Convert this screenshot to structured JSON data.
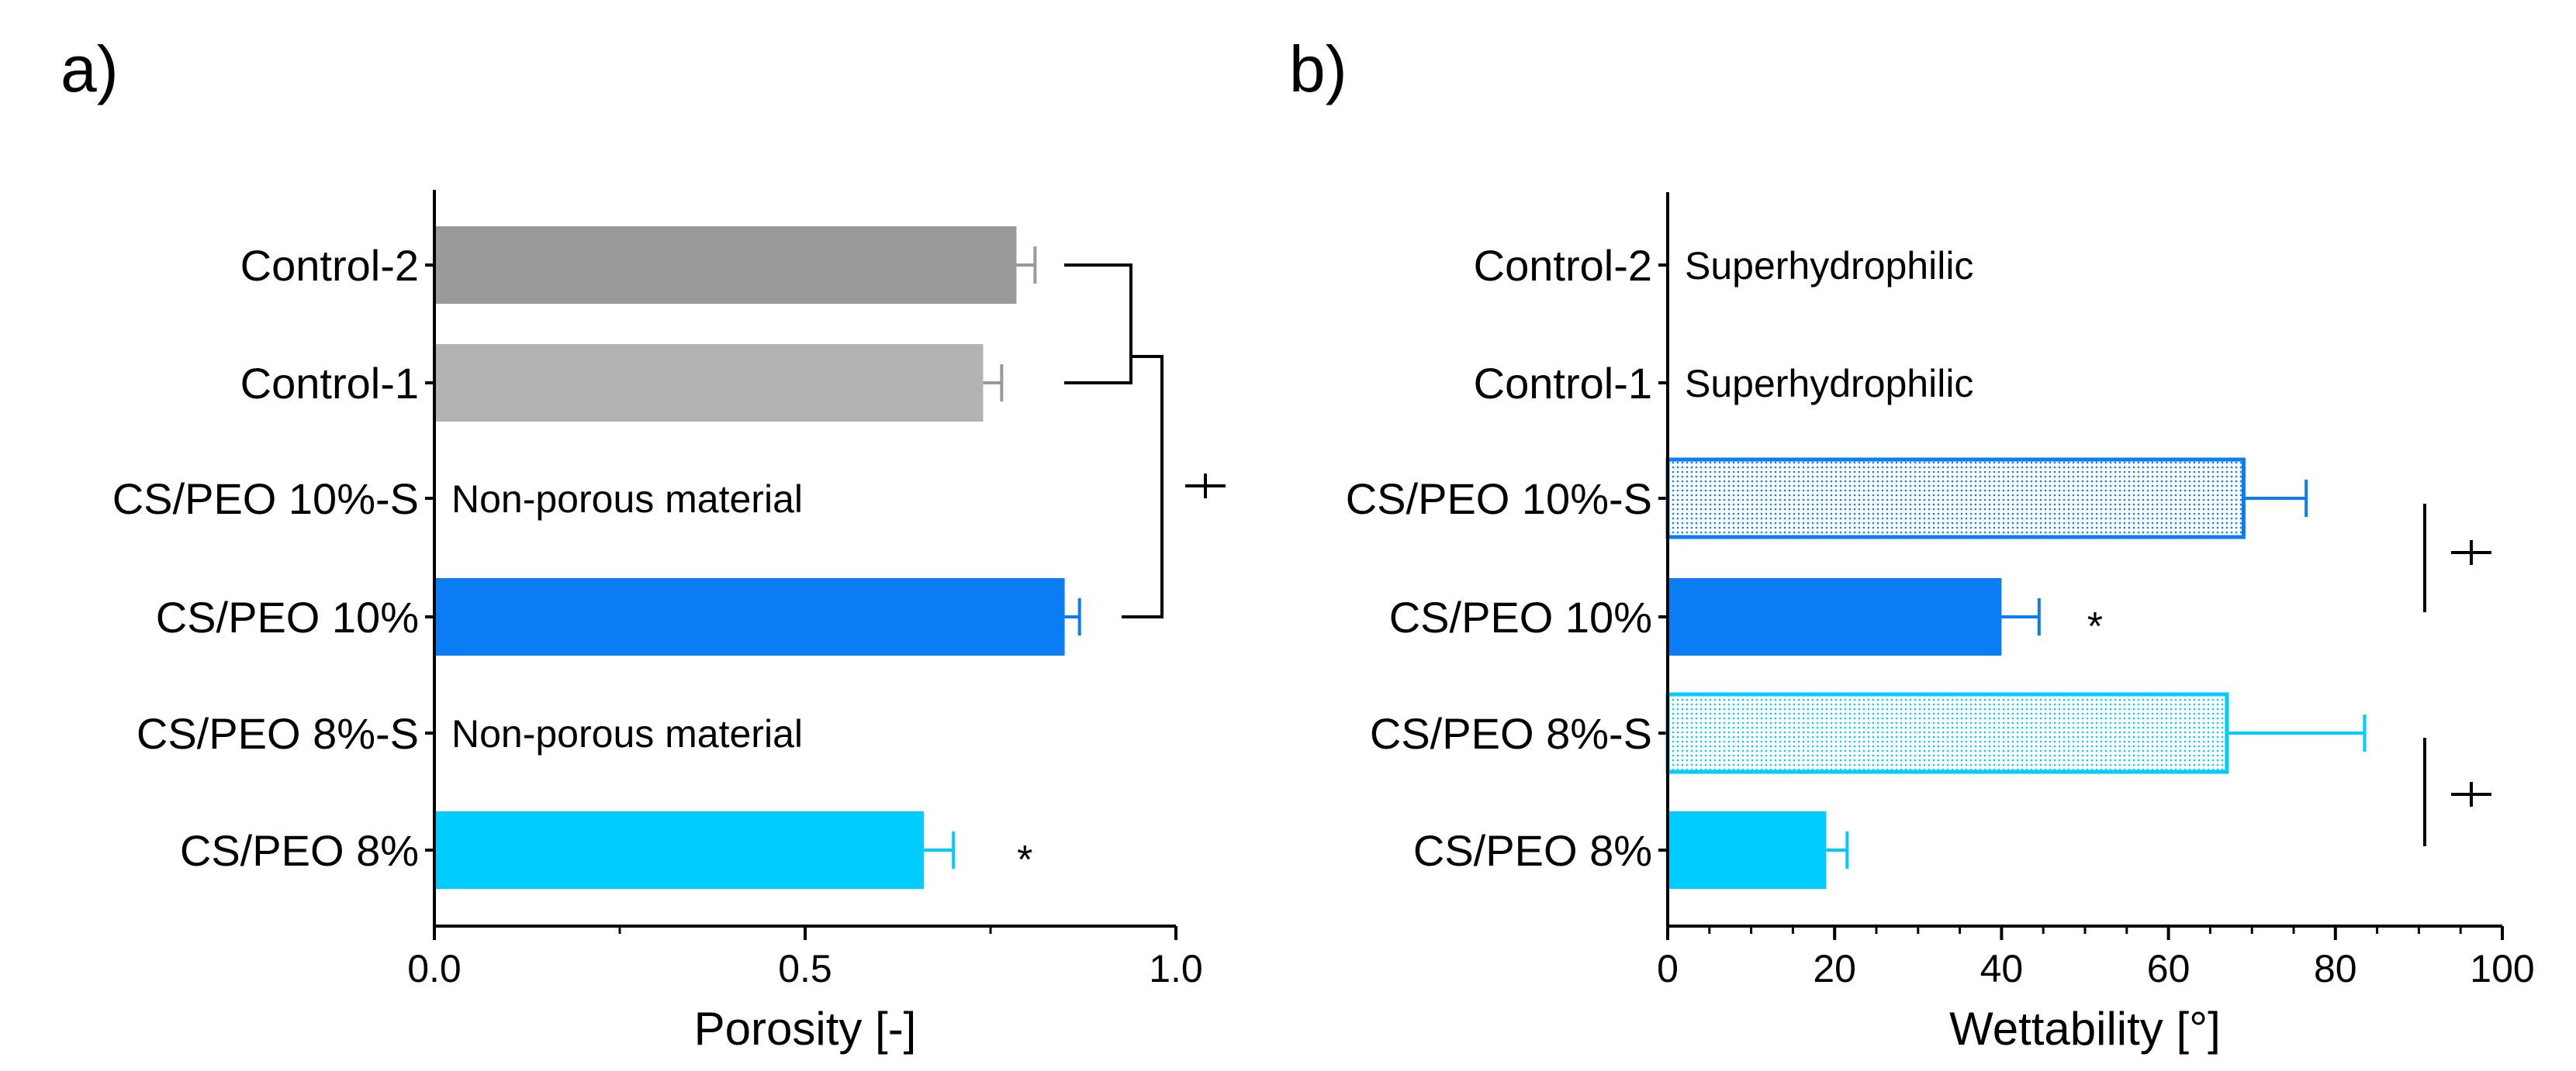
{
  "chart_data": [
    {
      "panel": "a)",
      "type": "bar",
      "orientation": "horizontal",
      "xlabel": "Porosity [-]",
      "xlim": [
        0,
        1
      ],
      "xticks": [
        "0.0",
        "0.5",
        "1.0"
      ],
      "categories": [
        "Control-2",
        "Control-1",
        "CS/PEO 10%-S",
        "CS/PEO 10%",
        "CS/PEO 8%-S",
        "CS/PEO 8%"
      ],
      "bars": [
        {
          "label": "Control-2",
          "value": 0.785,
          "error": 0.025,
          "color": "#999999",
          "fill": "solid"
        },
        {
          "label": "Control-1",
          "value": 0.74,
          "error": 0.025,
          "color": "#b3b3b3",
          "fill": "solid"
        },
        {
          "label": "CS/PEO 10%-S",
          "value": null,
          "note": "Non-porous material"
        },
        {
          "label": "CS/PEO 10%",
          "value": 0.85,
          "error": 0.02,
          "color": "#0a7df5",
          "fill": "solid"
        },
        {
          "label": "CS/PEO 8%-S",
          "value": null,
          "note": "Non-porous material"
        },
        {
          "label": "CS/PEO 8%",
          "value": 0.66,
          "error": 0.04,
          "color": "#00ccff",
          "fill": "solid",
          "marker": "*"
        }
      ],
      "significance": [
        {
          "between": [
            "Control-2",
            "Control-1"
          ],
          "symbol": ""
        },
        {
          "between": [
            "Control-2 / Control-1",
            "CS/PEO 10%"
          ],
          "symbol": "+"
        }
      ]
    },
    {
      "panel": "b)",
      "type": "bar",
      "orientation": "horizontal",
      "xlabel": "Wettability [°]",
      "xlim": [
        0,
        100
      ],
      "xticks": [
        "0",
        "20",
        "40",
        "60",
        "80",
        "100"
      ],
      "categories": [
        "Control-2",
        "Control-1",
        "CS/PEO 10%-S",
        "CS/PEO 10%",
        "CS/PEO 8%-S",
        "CS/PEO 8%"
      ],
      "bars": [
        {
          "label": "Control-2",
          "value": null,
          "note": "Superhydrophilic"
        },
        {
          "label": "Control-1",
          "value": null,
          "note": "Superhydrophilic"
        },
        {
          "label": "CS/PEO 10%-S",
          "value": 69,
          "error": 7.5,
          "color": "#0a7df5",
          "fill": "dotted"
        },
        {
          "label": "CS/PEO 10%",
          "value": 40,
          "error": 4.5,
          "color": "#0a7df5",
          "fill": "solid",
          "marker": "*"
        },
        {
          "label": "CS/PEO 8%-S",
          "value": 67,
          "error": 16.5,
          "color": "#00ccff",
          "fill": "dotted"
        },
        {
          "label": "CS/PEO 8%",
          "value": 19,
          "error": 2.5,
          "color": "#00ccff",
          "fill": "solid"
        }
      ],
      "significance": [
        {
          "between": [
            "CS/PEO 10%-S",
            "CS/PEO 10%"
          ],
          "symbol": "+"
        },
        {
          "between": [
            "CS/PEO 8%-S",
            "CS/PEO 8%"
          ],
          "symbol": "+"
        }
      ]
    }
  ]
}
